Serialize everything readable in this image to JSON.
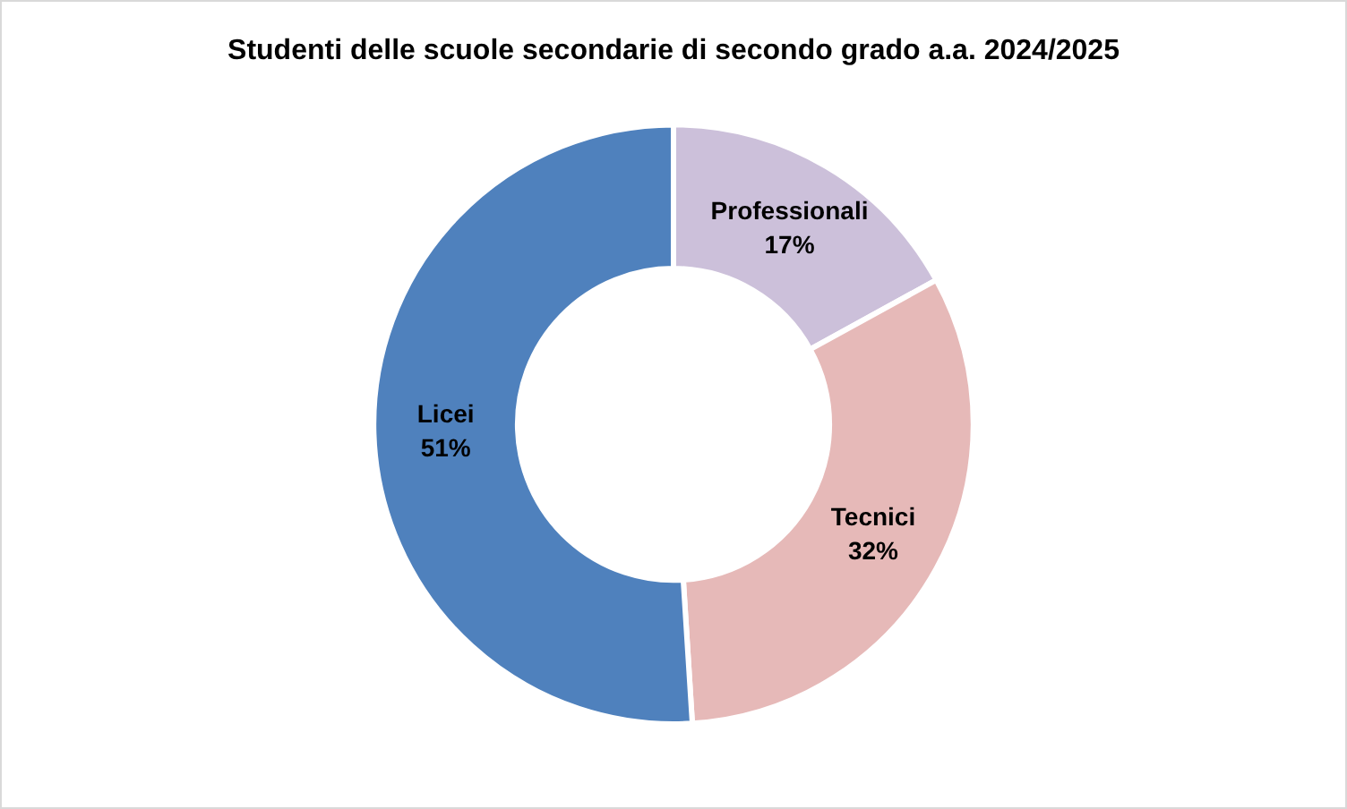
{
  "chart_data": {
    "type": "donut",
    "title": "Studenti delle scuole secondarie di secondo grado a.a. 2024/2025",
    "categories": [
      "Professionali",
      "Tecnici",
      "Licei"
    ],
    "values": [
      17,
      32,
      51
    ],
    "colors": [
      "#ccc0da",
      "#e6b9b8",
      "#4f81bd"
    ],
    "value_labels": [
      "17%",
      "32%",
      "51%"
    ],
    "legend": false
  }
}
